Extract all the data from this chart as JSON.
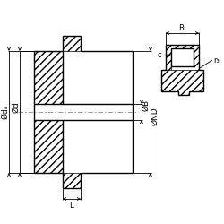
{
  "bg_color": "#ffffff",
  "line_color": "#000000",
  "labels": {
    "da": "Ødₐ",
    "d": "Ød",
    "B": "ØB",
    "ND": "ØND",
    "L": "L",
    "B1": "B₁",
    "c": "c",
    "r3": "r₃"
  },
  "font_size_main": 6.5,
  "font_size_small": 6.0
}
